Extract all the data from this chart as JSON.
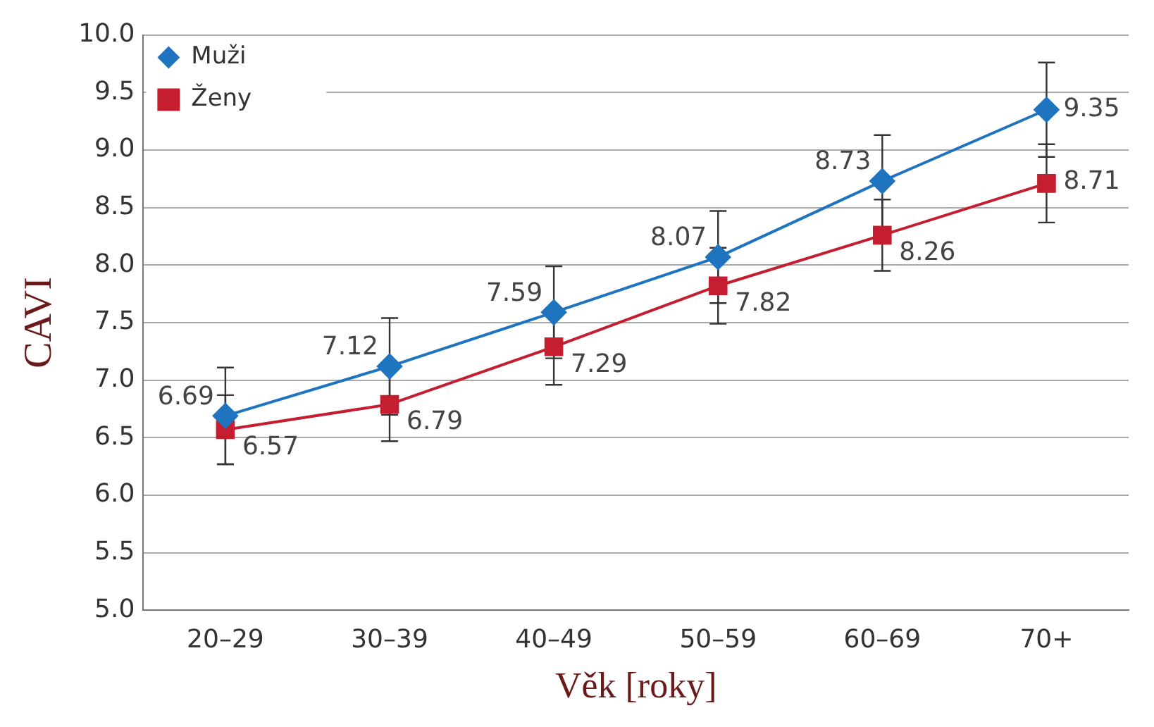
{
  "chart_data": {
    "type": "line",
    "xlabel": "Věk [roky]",
    "ylabel": "CAVI",
    "categories": [
      "20–29",
      "30–39",
      "40–49",
      "50–59",
      "60–69",
      "70+"
    ],
    "series": [
      {
        "name": "Muži",
        "color": "#1f74c0",
        "marker": "diamond",
        "values": [
          6.69,
          7.12,
          7.59,
          8.07,
          8.73,
          9.35
        ],
        "errors": [
          0.42,
          0.42,
          0.4,
          0.4,
          0.4,
          0.41
        ]
      },
      {
        "name": "Ženy",
        "color": "#c41e30",
        "marker": "square",
        "values": [
          6.57,
          6.79,
          7.29,
          7.82,
          8.26,
          8.71
        ],
        "errors": [
          0.3,
          0.32,
          0.33,
          0.33,
          0.31,
          0.34
        ]
      }
    ],
    "ylim": [
      5,
      10
    ],
    "yticks": [
      {
        "value": 5,
        "label": "5.0"
      },
      {
        "value": 5.5,
        "label": "5.5"
      },
      {
        "value": 6,
        "label": "6.0"
      },
      {
        "value": 6.5,
        "label": "6.5"
      },
      {
        "value": 7,
        "label": "7.0"
      },
      {
        "value": 7.5,
        "label": "7.5"
      },
      {
        "value": 8,
        "label": "8.0"
      },
      {
        "value": 8.5,
        "label": "8.5"
      },
      {
        "value": 9,
        "label": "9.0"
      },
      {
        "value": 9.5,
        "label": "9.5"
      },
      {
        "value": 10,
        "label": "10.0"
      }
    ],
    "grid": "y",
    "legend": "top left",
    "data_labels": true,
    "line_style": "solid"
  }
}
